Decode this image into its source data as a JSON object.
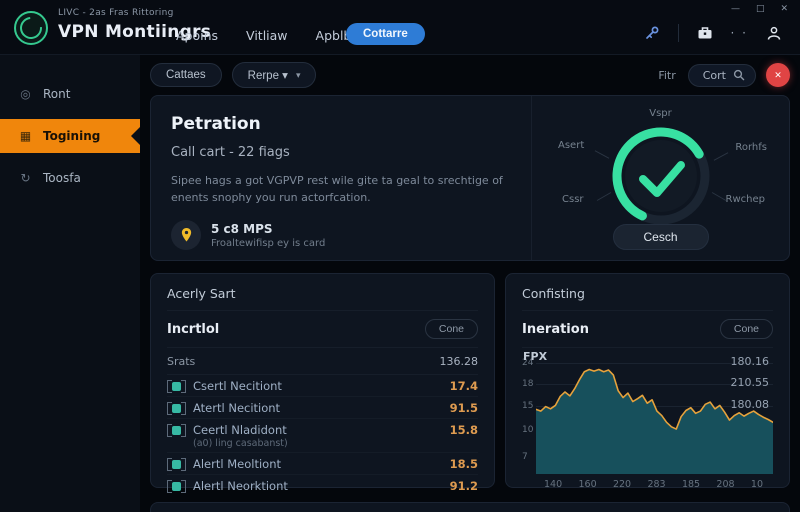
{
  "titlebar": {
    "tagline": "LIVC - 2as Fras Rittoring",
    "app_title": "VPN Montiingrs",
    "nav": [
      {
        "label": "Apoins"
      },
      {
        "label": "Vitliaw"
      },
      {
        "label": "Apblboard"
      }
    ],
    "cta_label": "Cottarre",
    "window_controls": [
      "—",
      "□",
      "✕"
    ],
    "dots": "· ·"
  },
  "sidebar": {
    "items": [
      {
        "label": "Ront",
        "icon": "◎",
        "active": false
      },
      {
        "label": "Togining",
        "icon": "▦",
        "active": true
      },
      {
        "label": "Toosfa",
        "icon": "↻",
        "active": false
      }
    ]
  },
  "toolbar": {
    "filter_button": "Cattaes",
    "range_button": "Rerpe ▾",
    "chevron": "▾",
    "right_label": "Fitr",
    "search_value": "Cort",
    "alert_glyph": "✕"
  },
  "hero": {
    "title": "Petration",
    "subtitle": "Call cart - 22 fiags",
    "description": "Sipee hags a got VGPVP rest wile gite ta geal to srechtige of enents snophy you run actorfcation.",
    "metric_value": "5 c8 MPS",
    "metric_caption": "Froaltewifisp ey is card",
    "gauge": {
      "label_top": "Vspr",
      "label_left": "Asert",
      "label_right": "Rorhfs",
      "label_bottom_left": "Cssr",
      "label_bottom_right": "Rwchep",
      "button": "Cesch",
      "accent_color": "#38e0a2"
    }
  },
  "activity_card": {
    "header": "Acerly Sart",
    "section_title": "Incrtlol",
    "action": "Cone",
    "summary_label": "Srats",
    "summary_value": "136.28",
    "rows": [
      {
        "label": "Csertl Necitiont",
        "value": "17.4"
      },
      {
        "label": "Atertl Necitiont",
        "value": "91.5"
      },
      {
        "label": "Ceertl Nladidont",
        "sub": "(a0) ling casabanst)",
        "value": "15.8"
      },
      {
        "label": "Alertl Meoltiont",
        "value": "18.5"
      },
      {
        "label": "Alertl Neorktiont",
        "value": "91.2"
      }
    ],
    "value_color": "#de9b50"
  },
  "chart_card": {
    "header": "Confisting",
    "section_title": "Ineration",
    "action": "Cone",
    "overlay_values": [
      "180.16",
      "210.55",
      "180.08"
    ]
  },
  "chart_data": {
    "type": "area",
    "title": "Ineration",
    "ylabel": "FPX",
    "ylim": [
      0,
      21
    ],
    "x_ticks": [
      "140",
      "160",
      "220",
      "283",
      "185",
      "208",
      "10"
    ],
    "y_ticks": [
      "24",
      "18",
      "15",
      "10",
      "7"
    ],
    "y_tick_pos": [
      6,
      24,
      42,
      63,
      86
    ],
    "grid": true,
    "line_color": "#e6a23c",
    "fill_color": "#17505c",
    "values": [
      11.5,
      11.2,
      12.0,
      11.6,
      12.2,
      13.8,
      14.6,
      13.9,
      15.2,
      16.8,
      18.2,
      18.6,
      18.3,
      18.6,
      18.2,
      18.5,
      17.6,
      14.8,
      13.6,
      14.4,
      12.9,
      13.4,
      14.0,
      12.6,
      13.2,
      11.2,
      10.4,
      9.2,
      8.4,
      8.0,
      10.2,
      11.3,
      11.8,
      10.8,
      11.2,
      12.4,
      12.8,
      11.6,
      12.2,
      11.0,
      9.6,
      10.4,
      10.9,
      10.3,
      10.8,
      11.2,
      10.6,
      10.1,
      9.7,
      9.2
    ]
  }
}
